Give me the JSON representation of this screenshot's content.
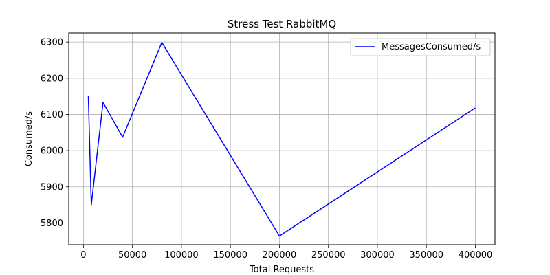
{
  "chart_data": {
    "type": "line",
    "title": "Stress Test RabbitMQ",
    "xlabel": "Total Requests",
    "ylabel": "Consumed/s",
    "xlim": [
      -15000,
      420000
    ],
    "ylim": [
      5740,
      6325
    ],
    "x_ticks": [
      0,
      50000,
      100000,
      150000,
      200000,
      250000,
      300000,
      350000,
      400000
    ],
    "y_ticks": [
      5800,
      5900,
      6000,
      6100,
      6200,
      6300
    ],
    "grid": true,
    "legend_position": "top-right",
    "series": [
      {
        "name": "MessagesConsumed/s",
        "color": "#0000ff",
        "x": [
          5000,
          8000,
          20000,
          40000,
          80000,
          200000,
          400000
        ],
        "y": [
          6152,
          5850,
          6133,
          6037,
          6299,
          5764,
          6118
        ]
      }
    ]
  }
}
